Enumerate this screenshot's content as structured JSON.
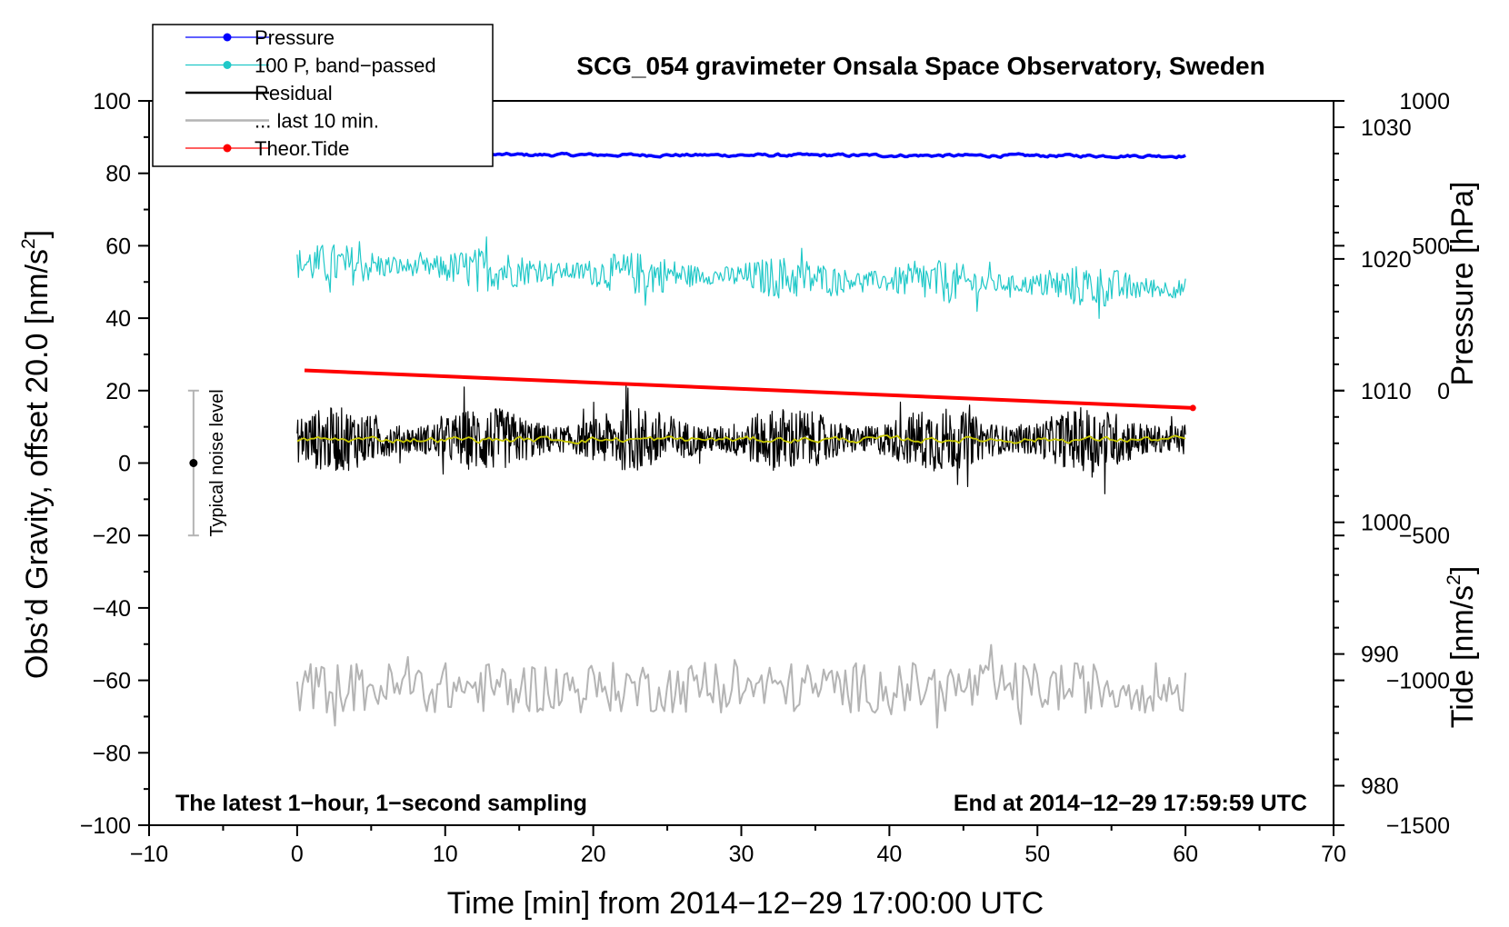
{
  "chart_data": {
    "type": "line",
    "title": "SCG_054 gravimeter Onsala Space Observatory, Sweden",
    "xlabel": "Time [min] from 2014−12−29 17:00:00 UTC",
    "ylabel_left": "Obs’d Gravity, offset 20.0 [nm/s",
    "ylabel_left_sup": "2",
    "ylabel_left_close": "]",
    "ylabel_pressure": "Pressure [hPa]",
    "ylabel_tide": "Tide [nm/s",
    "ylabel_tide_sup": "2",
    "ylabel_tide_close": "]",
    "xlim": [
      -10,
      70
    ],
    "ylim_left": [
      -100,
      100
    ],
    "ylim_pressure": [
      977,
      1032
    ],
    "ylim_tide": [
      -1500,
      1000
    ],
    "x_ticks": [
      -10,
      0,
      10,
      20,
      30,
      40,
      50,
      60,
      70
    ],
    "x_tick_labels": [
      "−10",
      "0",
      "10",
      "20",
      "30",
      "40",
      "50",
      "60",
      "70"
    ],
    "y_ticks_left": [
      -100,
      -80,
      -60,
      -40,
      -20,
      0,
      20,
      40,
      60,
      80,
      100
    ],
    "y_tick_labels_left": [
      "−100",
      "−80",
      "−60",
      "−40",
      "−20",
      "0",
      "20",
      "40",
      "60",
      "80",
      "100"
    ],
    "pressure_ticks": [
      980,
      990,
      1000,
      1010,
      1020,
      1030
    ],
    "pressure_tick_labels": [
      "980",
      "990",
      "1000",
      "1010",
      "1020",
      "1030"
    ],
    "tide_ticks": [
      -1500,
      -1000,
      -500,
      0,
      500,
      1000
    ],
    "tide_tick_labels": [
      "−1500",
      "−1000",
      "−500",
      "0",
      "500",
      "1000"
    ],
    "legend": {
      "position": "top-left",
      "entries": [
        {
          "label": "Pressure",
          "color": "#0000ff",
          "marker": true
        },
        {
          "label": "100 P, band−passed",
          "color": "#20c8c8",
          "marker": true
        },
        {
          "label": "Residual",
          "color": "#000000",
          "marker": false
        },
        {
          "label": "... last 10 min.",
          "color": "#b4b4b4",
          "marker": false
        },
        {
          "label": "Theor.Tide",
          "color": "#ff0000",
          "marker": true
        }
      ]
    },
    "annotations": {
      "bottom_left": "The latest 1−hour, 1−second sampling",
      "bottom_right": "End at 2014−12−29 17:59:59 UTC",
      "noise_label": "Typical noise level",
      "noise_center": 0,
      "noise_range": [
        -20,
        20
      ],
      "noise_x": -7
    },
    "series": [
      {
        "name": "Pressure",
        "axis": "left",
        "color": "#0000ff",
        "x_range": [
          0,
          60
        ],
        "start": 85.2,
        "end": 84.8,
        "amplitude": 0.3,
        "kind": "pressure"
      },
      {
        "name": "100 P, band−passed",
        "axis": "left",
        "color": "#20c8c8",
        "x_range": [
          0,
          60
        ],
        "start": 55,
        "end": 48,
        "amplitude": 6,
        "kind": "noise"
      },
      {
        "name": "Residual",
        "axis": "left",
        "color": "#000000",
        "x_range": [
          0,
          60
        ],
        "start": 6.5,
        "end": 6.5,
        "amplitude": 9,
        "kind": "noise"
      },
      {
        "name": "Residual smoothed",
        "axis": "left",
        "color": "#c8c800",
        "x_range": [
          0,
          60
        ],
        "start": 6.5,
        "end": 6.5,
        "amplitude": 0.7,
        "kind": "smooth"
      },
      {
        "name": "... last 10 min.",
        "axis": "left",
        "color": "#b4b4b4",
        "x_range": [
          0,
          60
        ],
        "start": -62,
        "end": -62,
        "amplitude": 7,
        "kind": "slow"
      },
      {
        "name": "Theor.Tide",
        "axis": "tide",
        "color": "#ff0000",
        "x_range": [
          0.5,
          60.5
        ],
        "start": 70,
        "end": -60,
        "amplitude": 0,
        "kind": "line"
      }
    ]
  }
}
